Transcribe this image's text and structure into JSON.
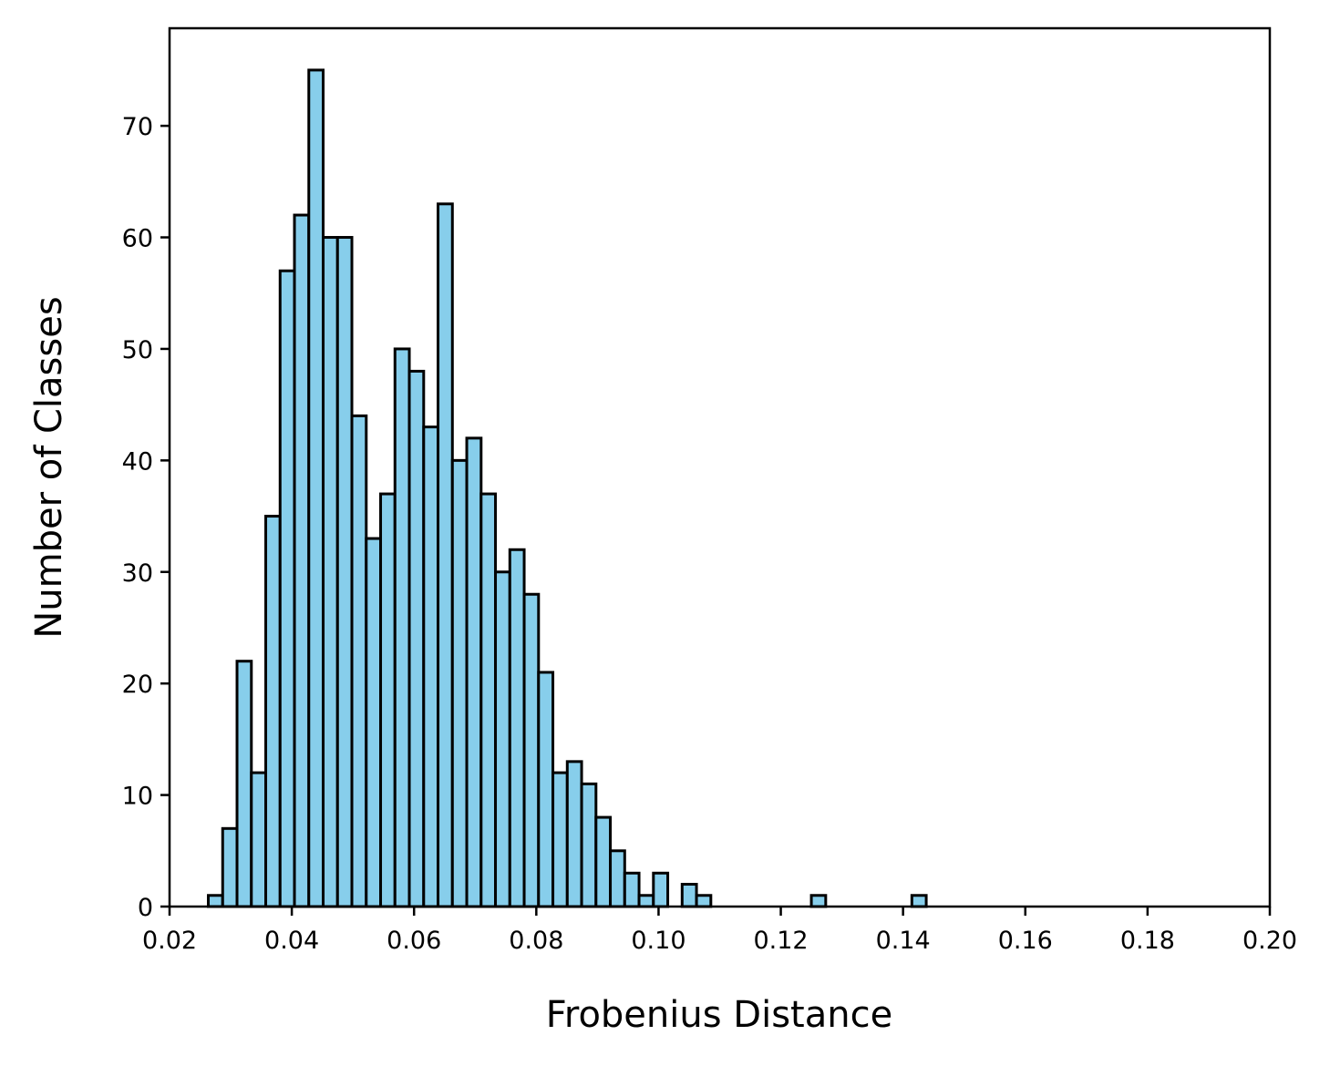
{
  "chart_data": {
    "type": "bar",
    "subtype": "histogram",
    "title": "",
    "xlabel": "Frobenius Distance",
    "ylabel": "Number of Classes",
    "xlim": [
      0.02,
      0.2
    ],
    "ylim": [
      0,
      78.75
    ],
    "bin_start": 0.02634,
    "bin_width": 0.002349,
    "counts": [
      1,
      7,
      22,
      12,
      35,
      57,
      62,
      75,
      60,
      60,
      44,
      33,
      37,
      50,
      48,
      43,
      63,
      40,
      42,
      37,
      30,
      32,
      28,
      21,
      12,
      13,
      11,
      8,
      5,
      3,
      1,
      3,
      0,
      2,
      1,
      0,
      0,
      0,
      0,
      0,
      0,
      0,
      1,
      0,
      0,
      0,
      0,
      0,
      0,
      1
    ],
    "xticks": [
      0.02,
      0.04,
      0.06,
      0.08,
      0.1,
      0.12,
      0.14,
      0.16,
      0.18,
      0.2
    ],
    "xtick_labels": [
      "0.02",
      "0.04",
      "0.06",
      "0.08",
      "0.10",
      "0.12",
      "0.14",
      "0.16",
      "0.18",
      "0.20"
    ],
    "yticks": [
      0,
      10,
      20,
      30,
      40,
      50,
      60,
      70
    ],
    "ytick_labels": [
      "0",
      "10",
      "20",
      "30",
      "40",
      "50",
      "60",
      "70"
    ],
    "grid": false,
    "bar_color": "#87CEEB",
    "edge_color": "#000000"
  }
}
